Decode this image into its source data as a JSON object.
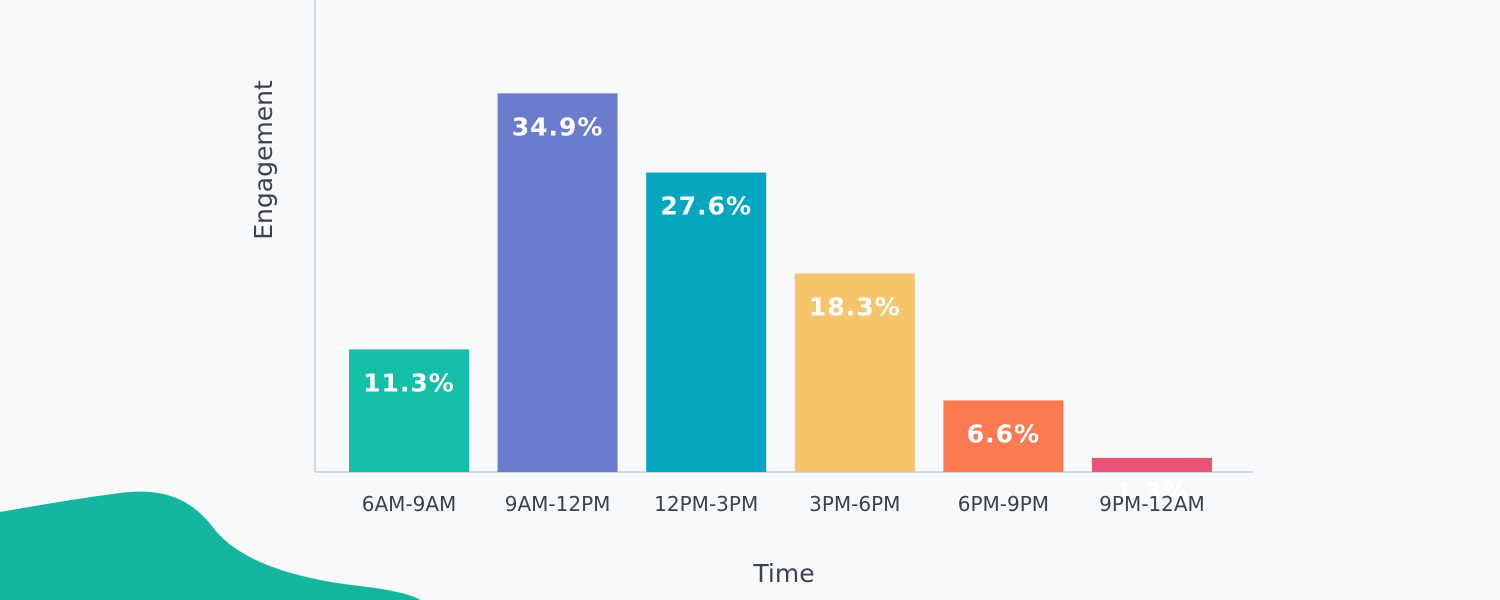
{
  "chart_data": {
    "type": "bar",
    "xlabel": "Time",
    "ylabel": "Engagement",
    "ylim": [
      0,
      40
    ],
    "grid": false,
    "categories": [
      "6AM-9AM",
      "9AM-12PM",
      "12PM-3PM",
      "3PM-6PM",
      "6PM-9PM",
      "9PM-12AM"
    ],
    "values": [
      11.3,
      34.9,
      27.6,
      18.3,
      6.6,
      1.3
    ],
    "value_labels": [
      "11.3%",
      "34.9%",
      "27.6%",
      "18.3%",
      "6.6%",
      "1.3%"
    ],
    "colors": [
      "#13bfa6",
      "#6b7bce",
      "#06a6bf",
      "#f6c46b",
      "#fb7a52",
      "#ea5478"
    ]
  },
  "decoration": {
    "blob_color": "#15b59e"
  }
}
